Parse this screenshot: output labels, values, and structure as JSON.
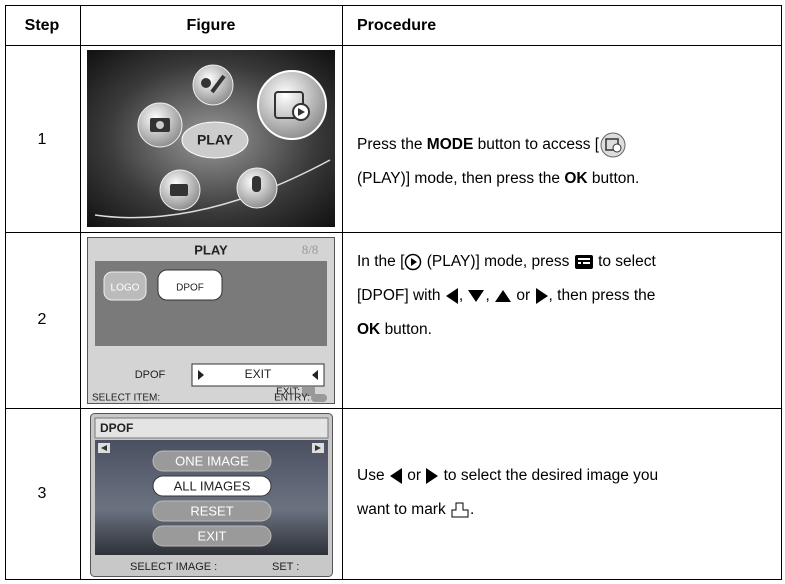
{
  "table": {
    "header": [
      "Step",
      "Figure",
      "Procedure"
    ],
    "rows": [
      {
        "step": "1",
        "figure": {
          "label": "PLAY"
        },
        "procedure": [
          "Press the",
          "MODE",
          "button to access [",
          "(PLAY)] mode, then press the",
          "OK",
          "button."
        ]
      },
      {
        "step": "2",
        "figure": {
          "title": "PLAY",
          "page": "8/8",
          "logo": "LOGO",
          "item": "DPOF",
          "menu_label": "DPOF",
          "menu_value": "EXIT",
          "exit": "EXIT:",
          "select": "SELECT ITEM:",
          "entry": "ENTRY:"
        },
        "procedure": [
          "In the [",
          "(PLAY)] mode, press",
          "to select",
          "[DPOF] with",
          ",",
          ",",
          "or",
          ", then press the",
          "OK",
          "button."
        ]
      },
      {
        "step": "3",
        "figure": {
          "title": "DPOF",
          "options": [
            "ONE IMAGE",
            "ALL IMAGES",
            "RESET",
            "EXIT"
          ],
          "select": "SELECT IMAGE :",
          "set": "SET :"
        },
        "procedure": [
          "Use",
          "or",
          "to select the desired image you",
          "want to mark",
          "."
        ]
      }
    ]
  }
}
